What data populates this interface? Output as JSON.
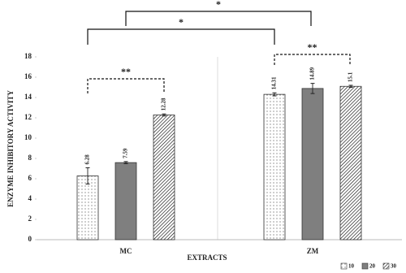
{
  "chart_data": {
    "type": "bar",
    "categories": [
      "MC",
      "ZM"
    ],
    "series": [
      {
        "name": "10",
        "color": "#8c8c8c",
        "pattern": "dots",
        "values": [
          6.28,
          14.31
        ],
        "errors": [
          0.8,
          0.15
        ]
      },
      {
        "name": "20",
        "color": "#7f7f7f",
        "pattern": "solid",
        "values": [
          7.59,
          14.89
        ],
        "errors": [
          0.1,
          0.5
        ]
      },
      {
        "name": "30",
        "color": "#707070",
        "pattern": "hatch",
        "values": [
          12.28,
          15.1
        ],
        "errors": [
          0.1,
          0.1
        ]
      }
    ],
    "ylim": [
      0,
      18
    ],
    "yticks": [
      0,
      2,
      4,
      6,
      8,
      10,
      12,
      14,
      16,
      18
    ],
    "xlabel": "EXTRACTS",
    "ylabel": "ENZYME INHIBITORY ACTIVITY",
    "annotations": [
      "*",
      "*",
      "**",
      "**"
    ],
    "legend": "bottom-right"
  }
}
